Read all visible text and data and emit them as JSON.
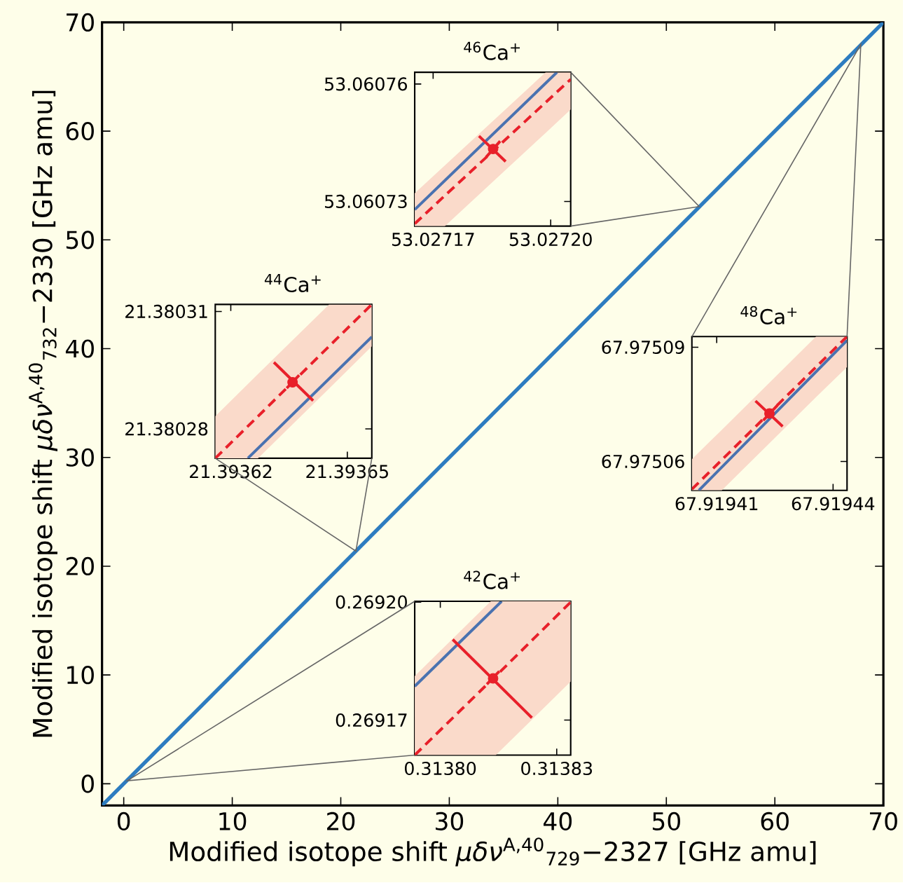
{
  "chart_data": [
    {
      "type": "line",
      "xlabel": "Modified isotope shift *μδν*$^{A,40}$$_{729}$−2327 [GHz amu]",
      "ylabel": "Modified isotope shift *μδν*$^{A,40}$$_{732}$−2330 [GHz amu]",
      "xlim": [
        -2,
        70
      ],
      "ylim": [
        -2,
        70
      ],
      "xticks": [
        0,
        10,
        20,
        30,
        40,
        50,
        60,
        70
      ],
      "yticks": [
        0,
        10,
        20,
        30,
        40,
        50,
        60,
        70
      ],
      "series": [
        {
          "color": "#2d7cc0",
          "x": [
            -2,
            70
          ],
          "values": [
            -2,
            70
          ]
        }
      ]
    },
    {
      "type": "line",
      "title": "$^{46}$Ca$^{+}$",
      "xlim": [
        53.0271653,
        53.0272051
      ],
      "ylim": [
        53.0607237,
        53.060763
      ],
      "xticks": [
        53.02717,
        {
          "value": 53.0272,
          "label": "53.02720"
        }
      ],
      "yticks": [
        53.06073,
        53.06076
      ],
      "series": [
        {
          "color": "#4a72b0",
          "x": [
            53.0271653,
            53.0272016
          ],
          "values": [
            53.0607279,
            53.060763
          ]
        },
        {
          "color": "#e8202a",
          "line_style": "dashed",
          "x": [
            53.0271653,
            53.027173,
            53.0271987,
            53.0272051
          ],
          "values": [
            53.0607243,
            53.0607315,
            53.0607553,
            53.0607612
          ],
          "lower": [
            53.0607237,
            53.0607237,
            53.0607475,
            53.0607535
          ],
          "upper": [
            53.0607321,
            53.0607392,
            53.060763,
            53.060763
          ]
        },
        {
          "type": "line",
          "color": "#e8202a",
          "x": [
            53.0271817,
            53.0271885
          ],
          "values": [
            53.0607467,
            53.0607402
          ]
        },
        {
          "type": "line",
          "color": "#e8202a",
          "x": [
            53.0271835,
            53.0271871
          ],
          "values": [
            53.0607413,
            53.0607454
          ]
        },
        {
          "type": "scatter",
          "marker": "circle",
          "color": "#e8202a",
          "x": [
            53.0271853
          ],
          "values": [
            53.0607434
          ]
        }
      ]
    },
    {
      "type": "line",
      "title": "$^{44}$Ca$^{+}$",
      "xlim": [
        21.393616,
        21.3936563
      ],
      "ylim": [
        21.3802725,
        21.3803118
      ],
      "xticks": [
        21.39362,
        21.39365
      ],
      "yticks": [
        21.38028,
        21.38031
      ],
      "series": [
        {
          "color": "#4a72b0",
          "x": [
            21.3936244,
            21.3936563
          ],
          "values": [
            21.3802725,
            21.3803035
          ]
        },
        {
          "color": "#e8202a",
          "line_style": "dashed",
          "x": [
            21.393616,
            21.393627,
            21.3936453,
            21.3936563
          ],
          "values": [
            21.3802725,
            21.3802832,
            21.3803011,
            21.3803118
          ],
          "lower": [
            21.3802725,
            21.3802725,
            21.3802903,
            21.3803011
          ],
          "upper": [
            21.3802832,
            21.380294,
            21.3803118,
            21.3803118
          ]
        },
        {
          "type": "line",
          "color": "#e8202a",
          "x": [
            21.3936311,
            21.3936412
          ],
          "values": [
            21.380297,
            21.3802872
          ]
        },
        {
          "type": "line",
          "color": "#e8202a",
          "x": [
            21.3936344,
            21.3936376
          ],
          "values": [
            21.3802904,
            21.3802937
          ]
        },
        {
          "type": "scatter",
          "marker": "circle",
          "color": "#e8202a",
          "x": [
            21.3936359
          ],
          "values": [
            21.3802919
          ]
        }
      ]
    },
    {
      "type": "line",
      "title": "$^{48}$Ca$^{+}$",
      "xlim": [
        67.9194036,
        67.9194436
      ],
      "ylim": [
        67.9750524,
        67.9750928
      ],
      "xticks": [
        67.91941,
        67.91944
      ],
      "yticks": [
        67.97506,
        67.97509
      ],
      "series": [
        {
          "color": "#4a72b0",
          "x": [
            67.9194054,
            67.9194436
          ],
          "values": [
            67.9750524,
            67.9750918
          ]
        },
        {
          "color": "#e8202a",
          "line_style": "dashed",
          "x": [
            67.9194036,
            67.9194113,
            67.9194356,
            67.9194436
          ],
          "values": [
            67.9750527,
            67.9750604,
            67.9750848,
            67.9750928
          ],
          "lower": [
            67.9750524,
            67.9750524,
            67.9750769,
            67.9750848
          ],
          "upper": [
            67.9750606,
            67.9750683,
            67.9750928,
            67.9750928
          ]
        },
        {
          "type": "line",
          "color": "#e8202a",
          "x": [
            67.91942,
            67.919427
          ],
          "values": [
            67.9750759,
            67.9750692
          ]
        },
        {
          "type": "line",
          "color": "#e8202a",
          "x": [
            67.919422,
            67.9194256
          ],
          "values": [
            67.9750708,
            67.9750747
          ]
        },
        {
          "type": "scatter",
          "marker": "circle",
          "color": "#e8202a",
          "x": [
            67.9194236
          ],
          "values": [
            67.9750726
          ]
        }
      ]
    },
    {
      "type": "line",
      "title": "$^{42}$Ca$^{+}$",
      "xlim": [
        0.3137934,
        0.3138336
      ],
      "ylim": [
        0.2691611,
        0.2692002
      ],
      "xticks": [
        {
          "value": 0.3138,
          "label": "0.31380"
        },
        0.31383
      ],
      "yticks": [
        0.26917,
        {
          "value": 0.2692,
          "label": "0.26920"
        }
      ],
      "series": [
        {
          "color": "#4a72b0",
          "x": [
            0.3137934,
            0.3138158
          ],
          "values": [
            0.2691786,
            0.2692002
          ]
        },
        {
          "color": "#e8202a",
          "line_style": "dashed",
          "x": [
            0.3137934,
            0.313813,
            0.3138143,
            0.3138336
          ],
          "values": [
            0.2691611,
            0.26918,
            0.2691812,
            0.2692
          ],
          "lower": [
            0.2691611,
            0.2691611,
            0.2691611,
            0.2691798
          ],
          "upper": [
            0.2691812,
            0.2692002,
            0.2692002,
            0.2692002
          ]
        },
        {
          "type": "line",
          "color": "#e8202a",
          "x": [
            0.3138032,
            0.3138236
          ],
          "values": [
            0.2691905,
            0.2691706
          ]
        },
        {
          "type": "line",
          "color": "#e8202a",
          "x": [
            0.313812,
            0.3138152
          ],
          "values": [
            0.2691791,
            0.2691824
          ]
        },
        {
          "type": "scatter",
          "marker": "circle",
          "color": "#e8202a",
          "x": [
            0.3138136
          ],
          "values": [
            0.2691806
          ]
        }
      ]
    }
  ]
}
